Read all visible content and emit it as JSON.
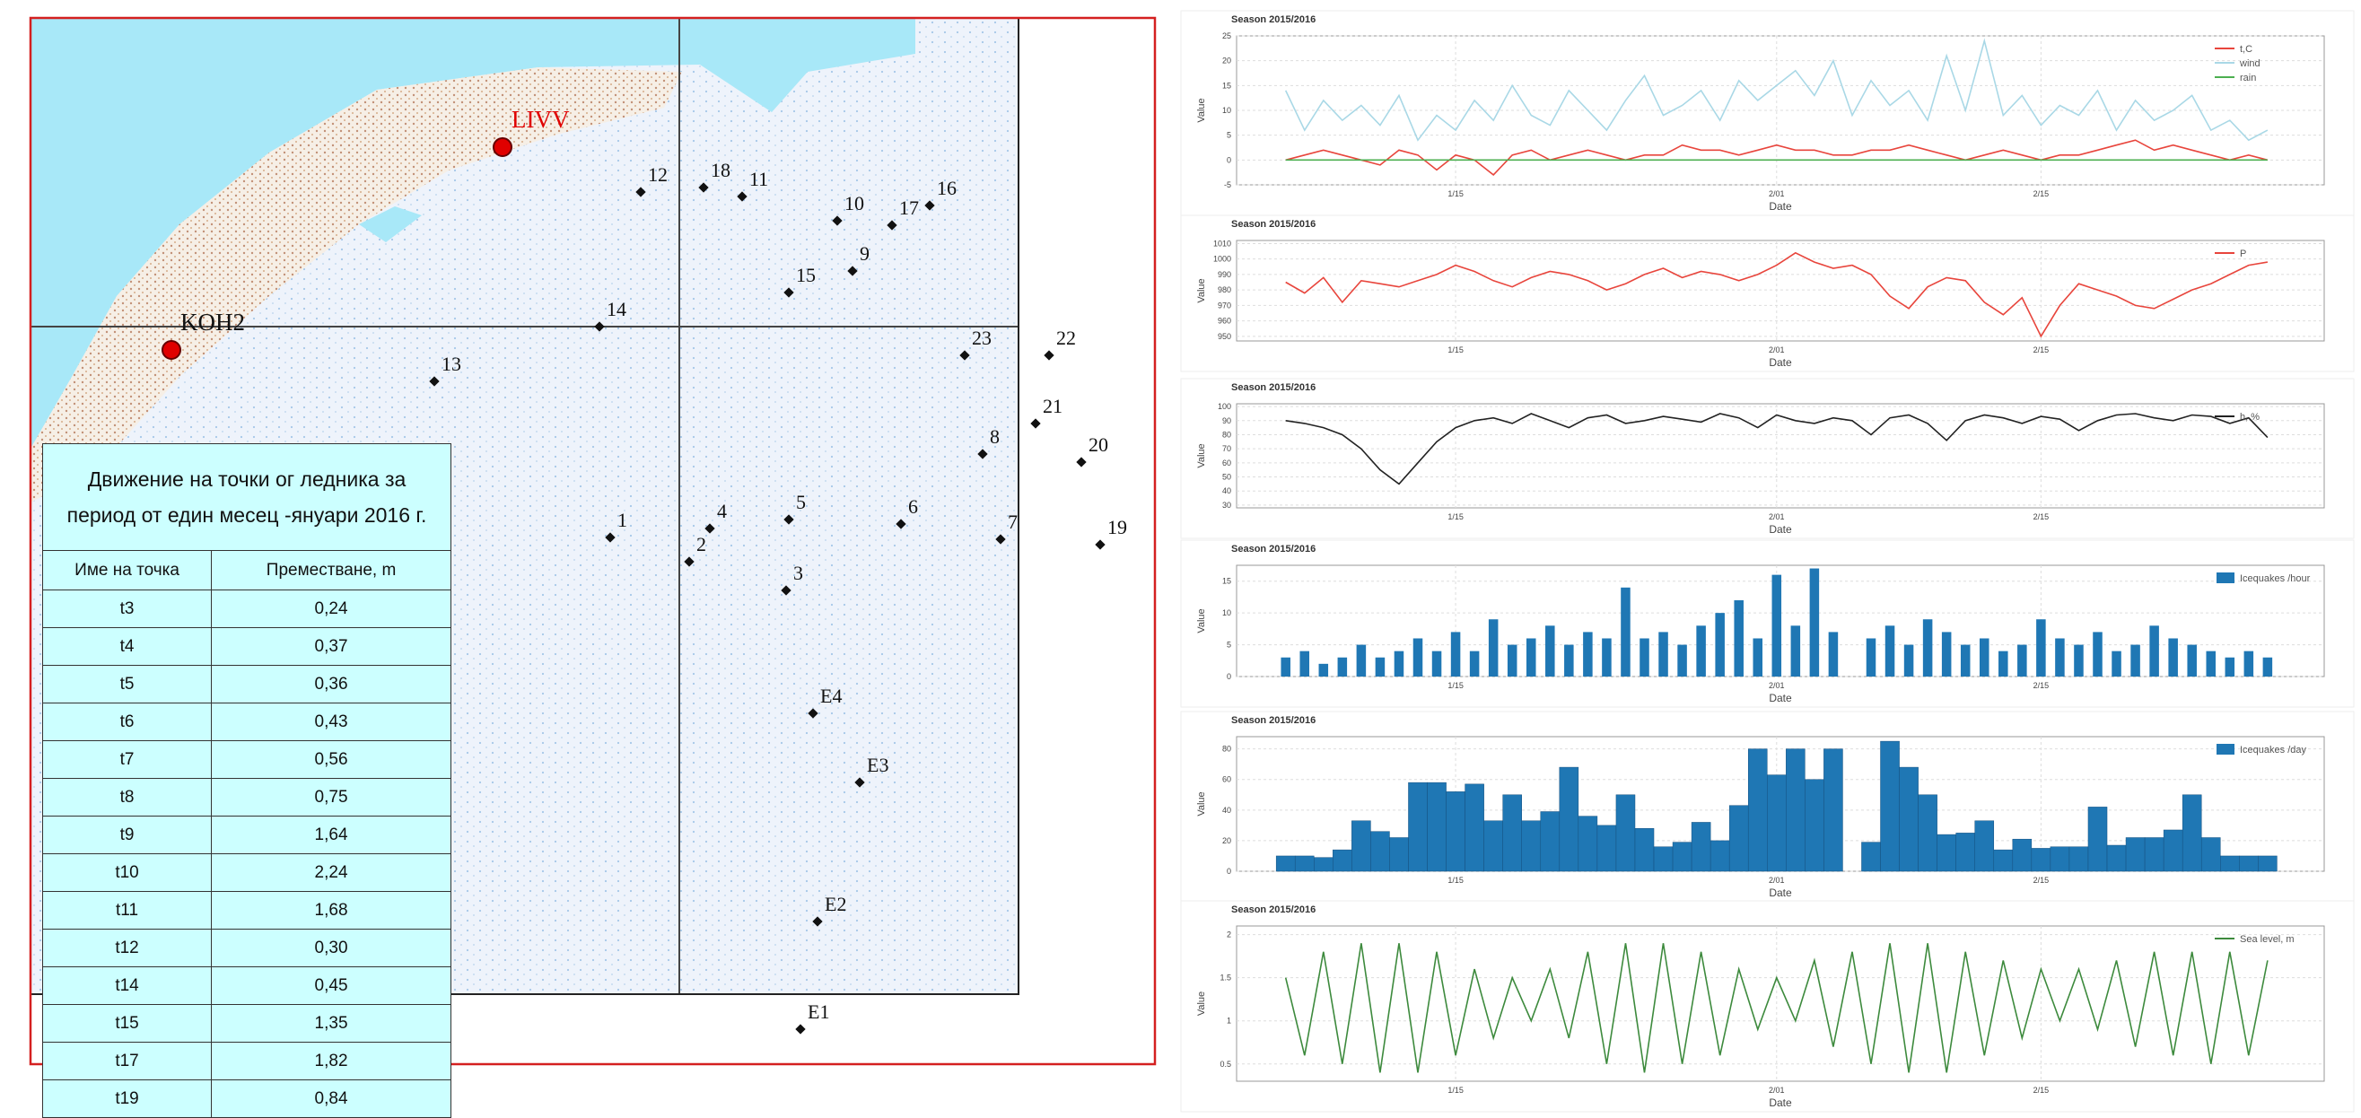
{
  "map": {
    "places": [
      {
        "label": "LIVV"
      },
      {
        "label": "KOH2"
      }
    ],
    "points": [
      {
        "label": "12"
      },
      {
        "label": "18"
      },
      {
        "label": "11"
      },
      {
        "label": "10"
      },
      {
        "label": "17"
      },
      {
        "label": "16"
      },
      {
        "label": "9"
      },
      {
        "label": "15"
      },
      {
        "label": "14"
      },
      {
        "label": "13"
      },
      {
        "label": "23"
      },
      {
        "label": "22"
      },
      {
        "label": "21"
      },
      {
        "label": "20"
      },
      {
        "label": "8"
      },
      {
        "label": "19"
      },
      {
        "label": "7"
      },
      {
        "label": "6"
      },
      {
        "label": "5"
      },
      {
        "label": "4"
      },
      {
        "label": "2"
      },
      {
        "label": "1"
      },
      {
        "label": "3"
      },
      {
        "label": "E4"
      },
      {
        "label": "E3"
      },
      {
        "label": "E2"
      },
      {
        "label": "E1"
      }
    ]
  },
  "table": {
    "title": "Движение на точки ог ледника за период от един месец -януари 2016 г.",
    "header": [
      "Име на точка",
      "Преместване, m"
    ],
    "rows": [
      [
        "t3",
        "0,24"
      ],
      [
        "t4",
        "0,37"
      ],
      [
        "t5",
        "0,36"
      ],
      [
        "t6",
        "0,43"
      ],
      [
        "t7",
        "0,56"
      ],
      [
        "t8",
        "0,75"
      ],
      [
        "t9",
        "1,64"
      ],
      [
        "t10",
        "2,24"
      ],
      [
        "t11",
        "1,68"
      ],
      [
        "t12",
        "0,30"
      ],
      [
        "t14",
        "0,45"
      ],
      [
        "t15",
        "1,35"
      ],
      [
        "t17",
        "1,82"
      ],
      [
        "t19",
        "0,84"
      ]
    ]
  },
  "chart_data": [
    {
      "type": "line",
      "title": "Season 2015/2016",
      "xlabel": "Date",
      "ylabel": "Value",
      "x": [
        6,
        7,
        8,
        9,
        10,
        11,
        12,
        13,
        14,
        15,
        16,
        17,
        18,
        19,
        20,
        21,
        22,
        23,
        24,
        25,
        26,
        27,
        28,
        29,
        30,
        31,
        32,
        33,
        34,
        35,
        36,
        37,
        38,
        39,
        40,
        41,
        42,
        43,
        44,
        45,
        46,
        47,
        48,
        49,
        50,
        51,
        52,
        53,
        54,
        55,
        56,
        57,
        58
      ],
      "xlim": [
        3.4,
        61
      ],
      "xticks": [
        {
          "value": 15,
          "label": "1/15"
        },
        {
          "value": 32,
          "label": "2/01"
        },
        {
          "value": 46,
          "label": "2/15"
        }
      ],
      "ylim": [
        -5,
        25
      ],
      "yticks": [
        -5,
        0,
        5,
        10,
        15,
        20,
        25
      ],
      "grid": true,
      "legend": "upper right",
      "series": [
        {
          "name": "t,C",
          "color": "#e8453c",
          "values": [
            0,
            1,
            2,
            1,
            0,
            -1,
            2,
            1,
            -2,
            1,
            0,
            -3,
            1,
            2,
            0,
            1,
            2,
            1,
            0,
            1,
            1,
            3,
            2,
            2,
            1,
            2,
            3,
            2,
            2,
            1,
            1,
            2,
            2,
            3,
            2,
            1,
            0,
            1,
            2,
            1,
            0,
            1,
            1,
            2,
            3,
            4,
            2,
            3,
            2,
            1,
            0,
            1,
            0
          ]
        },
        {
          "name": "wind",
          "color": "#a9d8e6",
          "values": [
            14,
            6,
            12,
            8,
            11,
            7,
            13,
            4,
            9,
            6,
            12,
            8,
            15,
            9,
            7,
            14,
            10,
            6,
            12,
            17,
            9,
            11,
            14,
            8,
            16,
            12,
            15,
            18,
            13,
            20,
            9,
            16,
            11,
            14,
            8,
            21,
            10,
            24,
            9,
            13,
            7,
            11,
            9,
            14,
            6,
            12,
            8,
            10,
            13,
            6,
            8,
            4,
            6
          ]
        },
        {
          "name": "rain",
          "color": "#4caf50",
          "values": [
            0,
            0,
            0,
            0,
            0,
            0,
            0,
            0,
            0,
            0,
            0,
            0,
            0,
            0,
            0,
            0,
            0,
            0,
            0,
            0,
            0,
            0,
            0,
            0,
            0,
            0,
            0,
            0,
            0,
            0,
            0,
            0,
            0,
            0,
            0,
            0,
            0,
            0,
            0,
            0,
            0,
            0,
            0,
            0,
            0,
            0,
            0,
            0,
            0,
            0,
            0,
            0,
            0
          ]
        }
      ]
    },
    {
      "type": "line",
      "title": "Season 2015/2016",
      "xlabel": "Date",
      "ylabel": "Value",
      "x": [
        6,
        7,
        8,
        9,
        10,
        11,
        12,
        13,
        14,
        15,
        16,
        17,
        18,
        19,
        20,
        21,
        22,
        23,
        24,
        25,
        26,
        27,
        28,
        29,
        30,
        31,
        32,
        33,
        34,
        35,
        36,
        37,
        38,
        39,
        40,
        41,
        42,
        43,
        44,
        45,
        46,
        47,
        48,
        49,
        50,
        51,
        52,
        53,
        54,
        55,
        56,
        57,
        58
      ],
      "xlim": [
        3.4,
        61
      ],
      "xticks": [
        {
          "value": 15,
          "label": "1/15"
        },
        {
          "value": 32,
          "label": "2/01"
        },
        {
          "value": 46,
          "label": "2/15"
        }
      ],
      "ylim": [
        947,
        1012
      ],
      "yticks": [
        950,
        960,
        970,
        980,
        990,
        1000,
        1010
      ],
      "grid": true,
      "legend": "upper right",
      "series": [
        {
          "name": "P",
          "color": "#e8453c",
          "values": [
            985,
            978,
            988,
            972,
            986,
            984,
            982,
            986,
            990,
            996,
            992,
            986,
            982,
            988,
            992,
            990,
            986,
            980,
            984,
            990,
            994,
            988,
            992,
            990,
            986,
            990,
            996,
            1004,
            998,
            994,
            996,
            990,
            976,
            968,
            982,
            988,
            986,
            972,
            964,
            975,
            950,
            970,
            984,
            980,
            976,
            970,
            968,
            974,
            980,
            984,
            990,
            996,
            998
          ]
        }
      ]
    },
    {
      "type": "line",
      "title": "Season 2015/2016",
      "xlabel": "Date",
      "ylabel": "Value",
      "x": [
        6,
        7,
        8,
        9,
        10,
        11,
        12,
        13,
        14,
        15,
        16,
        17,
        18,
        19,
        20,
        21,
        22,
        23,
        24,
        25,
        26,
        27,
        28,
        29,
        30,
        31,
        32,
        33,
        34,
        35,
        36,
        37,
        38,
        39,
        40,
        41,
        42,
        43,
        44,
        45,
        46,
        47,
        48,
        49,
        50,
        51,
        52,
        53,
        54,
        55,
        56,
        57,
        58
      ],
      "xlim": [
        3.4,
        61
      ],
      "xticks": [
        {
          "value": 15,
          "label": "1/15"
        },
        {
          "value": 32,
          "label": "2/01"
        },
        {
          "value": 46,
          "label": "2/15"
        }
      ],
      "ylim": [
        28,
        102
      ],
      "yticks": [
        30,
        40,
        50,
        60,
        70,
        80,
        90,
        100
      ],
      "grid": true,
      "legend": "upper right",
      "series": [
        {
          "name": "h, %",
          "color": "#222222",
          "values": [
            90,
            88,
            85,
            80,
            70,
            55,
            45,
            60,
            75,
            85,
            90,
            92,
            88,
            95,
            90,
            85,
            92,
            94,
            88,
            90,
            93,
            91,
            89,
            95,
            92,
            85,
            94,
            90,
            88,
            92,
            90,
            80,
            92,
            94,
            88,
            76,
            90,
            94,
            92,
            88,
            93,
            91,
            83,
            90,
            94,
            95,
            92,
            90,
            94,
            93,
            88,
            92,
            78
          ]
        }
      ]
    },
    {
      "type": "bar",
      "title": "Season 2015/2016",
      "xlabel": "Date",
      "ylabel": "Value",
      "x": [
        6,
        7,
        8,
        9,
        10,
        11,
        12,
        13,
        14,
        15,
        16,
        17,
        18,
        19,
        20,
        21,
        22,
        23,
        24,
        25,
        26,
        27,
        28,
        29,
        30,
        31,
        32,
        33,
        34,
        35,
        36,
        37,
        38,
        39,
        40,
        41,
        42,
        43,
        44,
        45,
        46,
        47,
        48,
        49,
        50,
        51,
        52,
        53,
        54,
        55,
        56,
        57,
        58
      ],
      "xlim": [
        3.4,
        61
      ],
      "xticks": [
        {
          "value": 15,
          "label": "1/15"
        },
        {
          "value": 32,
          "label": "2/01"
        },
        {
          "value": 46,
          "label": "2/15"
        }
      ],
      "ylim": [
        0,
        17.5
      ],
      "yticks": [
        0,
        5,
        10,
        15
      ],
      "grid": true,
      "legend": "upper right",
      "series": [
        {
          "name": "Icequakes /hour",
          "color": "#1f77b4",
          "values": [
            3,
            4,
            2,
            3,
            5,
            3,
            4,
            6,
            4,
            7,
            4,
            9,
            5,
            6,
            8,
            5,
            7,
            6,
            14,
            6,
            7,
            5,
            8,
            10,
            12,
            6,
            16,
            8,
            17,
            7,
            null,
            6,
            8,
            5,
            9,
            7,
            5,
            6,
            4,
            5,
            9,
            6,
            5,
            7,
            4,
            5,
            8,
            6,
            5,
            4,
            3,
            4,
            3
          ]
        }
      ]
    },
    {
      "type": "bar",
      "title": "Season 2015/2016",
      "xlabel": "Date",
      "ylabel": "Value",
      "x": [
        6,
        7,
        8,
        9,
        10,
        11,
        12,
        13,
        14,
        15,
        16,
        17,
        18,
        19,
        20,
        21,
        22,
        23,
        24,
        25,
        26,
        27,
        28,
        29,
        30,
        31,
        32,
        33,
        34,
        35,
        36,
        37,
        38,
        39,
        40,
        41,
        42,
        43,
        44,
        45,
        46,
        47,
        48,
        49,
        50,
        51,
        52,
        53,
        54,
        55,
        56,
        57,
        58
      ],
      "xlim": [
        3.4,
        61
      ],
      "xticks": [
        {
          "value": 15,
          "label": "1/15"
        },
        {
          "value": 32,
          "label": "2/01"
        },
        {
          "value": 46,
          "label": "2/15"
        }
      ],
      "ylim": [
        0,
        88
      ],
      "yticks": [
        0,
        20,
        40,
        60,
        80
      ],
      "grid": true,
      "legend": "upper right",
      "series": [
        {
          "name": "Icequakes /day",
          "color": "#1f77b4",
          "values": [
            10,
            10,
            9,
            14,
            33,
            26,
            22,
            58,
            58,
            52,
            57,
            33,
            50,
            33,
            39,
            68,
            36,
            30,
            50,
            28,
            16,
            19,
            32,
            20,
            43,
            80,
            63,
            80,
            60,
            80,
            null,
            19,
            85,
            68,
            50,
            24,
            25,
            33,
            14,
            21,
            15,
            16,
            16,
            42,
            17,
            22,
            22,
            27,
            50,
            22,
            10,
            10,
            10
          ]
        }
      ]
    },
    {
      "type": "line",
      "title": "Season 2015/2016",
      "xlabel": "Date",
      "ylabel": "Value",
      "x": [
        6,
        7,
        8,
        9,
        10,
        11,
        12,
        13,
        14,
        15,
        16,
        17,
        18,
        19,
        20,
        21,
        22,
        23,
        24,
        25,
        26,
        27,
        28,
        29,
        30,
        31,
        32,
        33,
        34,
        35,
        36,
        37,
        38,
        39,
        40,
        41,
        42,
        43,
        44,
        45,
        46,
        47,
        48,
        49,
        50,
        51,
        52,
        53,
        54,
        55,
        56,
        57,
        58
      ],
      "xlim": [
        3.4,
        61
      ],
      "xticks": [
        {
          "value": 15,
          "label": "1/15"
        },
        {
          "value": 32,
          "label": "2/01"
        },
        {
          "value": 46,
          "label": "2/15"
        }
      ],
      "ylim": [
        0.3,
        2.1
      ],
      "yticks": [
        0.5,
        1,
        1.5,
        2
      ],
      "grid": true,
      "legend": "upper right",
      "series": [
        {
          "name": "Sea level, m",
          "color": "#3d8a3d",
          "values": [
            1.5,
            0.6,
            1.8,
            0.5,
            1.9,
            0.4,
            1.9,
            0.4,
            1.8,
            0.6,
            1.6,
            0.8,
            1.5,
            1.0,
            1.6,
            0.8,
            1.8,
            0.5,
            1.9,
            0.4,
            1.9,
            0.5,
            1.8,
            0.6,
            1.6,
            0.9,
            1.5,
            1.0,
            1.7,
            0.7,
            1.8,
            0.5,
            1.9,
            0.4,
            1.9,
            0.4,
            1.8,
            0.6,
            1.7,
            0.8,
            1.6,
            1.0,
            1.6,
            0.9,
            1.7,
            0.7,
            1.8,
            0.6,
            1.8,
            0.5,
            1.8,
            0.6,
            1.7
          ]
        }
      ]
    }
  ]
}
